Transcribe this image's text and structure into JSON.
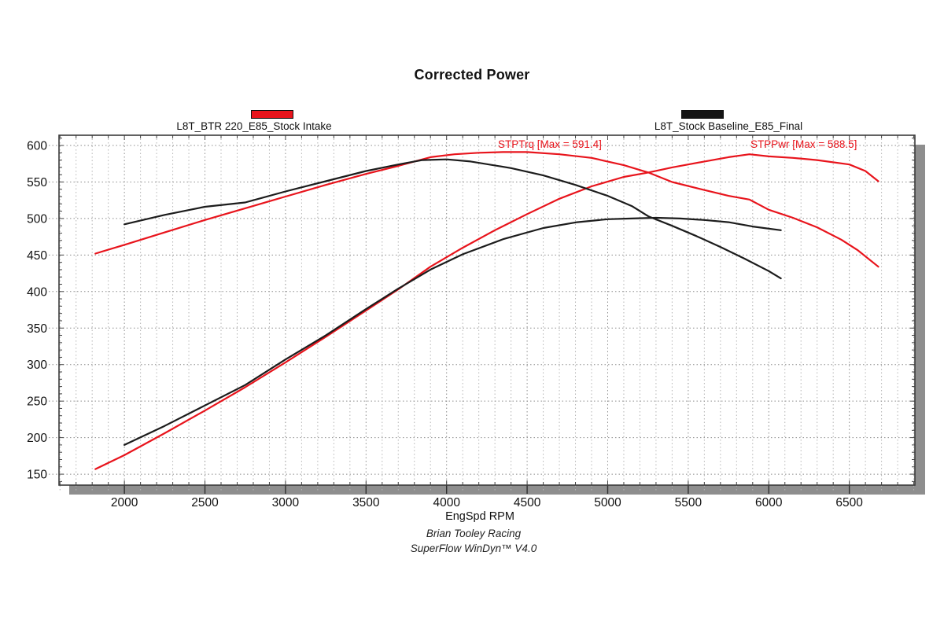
{
  "title": "Corrected Power",
  "legends": [
    {
      "label": "L8T_BTR 220_E85_Stock Intake",
      "color": "#e8141c"
    },
    {
      "label": "L8T_Stock Baseline_E85_Final",
      "color": "#141414"
    }
  ],
  "annotations": [
    {
      "id": "trq",
      "text": "STPTrq [Max = 591.4]",
      "color": "#e8141c"
    },
    {
      "id": "pwr",
      "text": "STPPwr [Max = 588.5]",
      "color": "#e8141c"
    }
  ],
  "footer": {
    "line1": "Brian Tooley Racing",
    "line2": "SuperFlow WinDyn™ V4.0"
  },
  "colors": {
    "accent_red": "#e8141c",
    "curve_black": "#1c1c1c",
    "grid_major": "#8c8c8c",
    "grid_minor": "#b4b4b4",
    "border": "#3b3b3b",
    "shadow": "#8e8e8e",
    "tick": "#444444",
    "label": "#111111"
  },
  "chart_data": {
    "type": "line",
    "title": "Corrected Power",
    "xlabel": "EngSpd RPM",
    "ylabel": "",
    "xlim": [
      1594,
      6907
    ],
    "ylim": [
      135,
      614
    ],
    "x_ticks": [
      2000,
      2500,
      3000,
      3500,
      4000,
      4500,
      5000,
      5500,
      6000,
      6500
    ],
    "y_ticks": [
      150,
      200,
      250,
      300,
      350,
      400,
      450,
      500,
      550,
      600
    ],
    "x_minor_step": 100,
    "y_minor_step": 10,
    "grid": "dotted, vertical minors every 100 RPM, horizontal majors every 50",
    "legend_position": "top",
    "series": [
      {
        "name": "STPTrq - L8T_BTR 220_E85_Stock Intake",
        "max_label": 591.4,
        "color": "#e8141c",
        "points": [
          [
            1820,
            452
          ],
          [
            2000,
            464
          ],
          [
            2250,
            481
          ],
          [
            2500,
            498
          ],
          [
            2750,
            514
          ],
          [
            3000,
            530
          ],
          [
            3250,
            546
          ],
          [
            3500,
            561
          ],
          [
            3700,
            572
          ],
          [
            3900,
            584
          ],
          [
            4050,
            588
          ],
          [
            4200,
            590
          ],
          [
            4350,
            591
          ],
          [
            4500,
            591
          ],
          [
            4700,
            588
          ],
          [
            4900,
            583
          ],
          [
            5100,
            573
          ],
          [
            5252,
            563
          ],
          [
            5400,
            550
          ],
          [
            5600,
            539
          ],
          [
            5750,
            531
          ],
          [
            5880,
            526
          ],
          [
            6000,
            512
          ],
          [
            6150,
            501
          ],
          [
            6300,
            488
          ],
          [
            6450,
            471
          ],
          [
            6550,
            457
          ],
          [
            6680,
            434
          ]
        ]
      },
      {
        "name": "STPPwr - L8T_BTR 220_E85_Stock Intake",
        "max_label": 588.5,
        "color": "#e8141c",
        "points": [
          [
            1820,
            157
          ],
          [
            2000,
            176
          ],
          [
            2250,
            206
          ],
          [
            2500,
            237
          ],
          [
            2750,
            269
          ],
          [
            3000,
            303
          ],
          [
            3250,
            338
          ],
          [
            3500,
            374
          ],
          [
            3700,
            403
          ],
          [
            3900,
            434
          ],
          [
            4100,
            460
          ],
          [
            4300,
            484
          ],
          [
            4500,
            506
          ],
          [
            4700,
            527
          ],
          [
            4900,
            544
          ],
          [
            5100,
            557
          ],
          [
            5252,
            563
          ],
          [
            5400,
            570
          ],
          [
            5600,
            578
          ],
          [
            5750,
            584
          ],
          [
            5880,
            588
          ],
          [
            6000,
            585
          ],
          [
            6150,
            583
          ],
          [
            6300,
            580
          ],
          [
            6500,
            574
          ],
          [
            6600,
            565
          ],
          [
            6680,
            551
          ]
        ]
      },
      {
        "name": "STPTrq - L8T_Stock Baseline_E85_Final",
        "color": "#1c1c1c",
        "points": [
          [
            2000,
            492
          ],
          [
            2250,
            505
          ],
          [
            2500,
            516
          ],
          [
            2750,
            522
          ],
          [
            3000,
            537
          ],
          [
            3250,
            551
          ],
          [
            3500,
            565
          ],
          [
            3700,
            574
          ],
          [
            3850,
            580
          ],
          [
            4000,
            581
          ],
          [
            4150,
            578
          ],
          [
            4400,
            569
          ],
          [
            4600,
            559
          ],
          [
            4800,
            546
          ],
          [
            5000,
            531
          ],
          [
            5150,
            517
          ],
          [
            5252,
            503
          ],
          [
            5400,
            490
          ],
          [
            5550,
            476
          ],
          [
            5700,
            461
          ],
          [
            5850,
            445
          ],
          [
            6000,
            428
          ],
          [
            6075,
            418
          ]
        ]
      },
      {
        "name": "STPPwr - L8T_Stock Baseline_E85_Final",
        "color": "#1c1c1c",
        "points": [
          [
            2000,
            190
          ],
          [
            2250,
            216
          ],
          [
            2500,
            244
          ],
          [
            2750,
            272
          ],
          [
            3000,
            307
          ],
          [
            3250,
            340
          ],
          [
            3500,
            376
          ],
          [
            3700,
            404
          ],
          [
            3900,
            430
          ],
          [
            4100,
            451
          ],
          [
            4355,
            472
          ],
          [
            4600,
            487
          ],
          [
            4810,
            495
          ],
          [
            5000,
            499
          ],
          [
            5150,
            500
          ],
          [
            5300,
            501
          ],
          [
            5450,
            500
          ],
          [
            5600,
            498
          ],
          [
            5750,
            495
          ],
          [
            5900,
            489
          ],
          [
            6075,
            484
          ]
        ]
      }
    ]
  }
}
